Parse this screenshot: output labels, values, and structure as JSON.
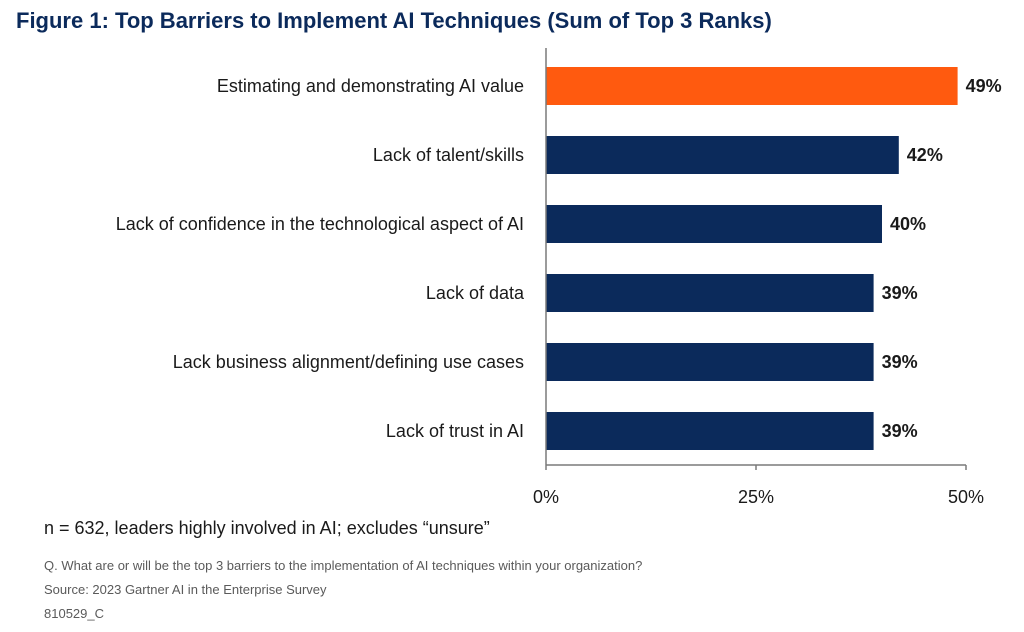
{
  "chart_data": {
    "type": "bar",
    "orientation": "horizontal",
    "title": "Figure 1: Top Barriers to Implement AI Techniques (Sum of Top 3 Ranks)",
    "categories": [
      "Estimating and demonstrating AI value",
      "Lack of talent/skills",
      "Lack of confidence in the technological aspect of AI",
      "Lack of data",
      "Lack business alignment/defining use cases",
      "Lack of trust in AI"
    ],
    "values": [
      49,
      42,
      40,
      39,
      39,
      39
    ],
    "value_labels": [
      "49%",
      "42%",
      "40%",
      "39%",
      "39%",
      "39%"
    ],
    "xlim": [
      0,
      50
    ],
    "x_ticks": [
      0,
      25,
      50
    ],
    "x_tick_labels": [
      "0%",
      "25%",
      "50%"
    ],
    "highlight_index": 0,
    "colors": {
      "highlight": "#ff5a0f",
      "bar": "#0b2a5b",
      "title": "#0b2a5b"
    },
    "grid": false,
    "xlabel": "",
    "ylabel": ""
  },
  "notes": {
    "sample": "n = 632, leaders highly involved in AI; excludes “unsure”",
    "question": "Q. What are or will be the top 3 barriers to the implementation of AI techniques within your organization?",
    "source": "Source: 2023 Gartner AI in the Enterprise Survey",
    "code": "810529_C"
  }
}
